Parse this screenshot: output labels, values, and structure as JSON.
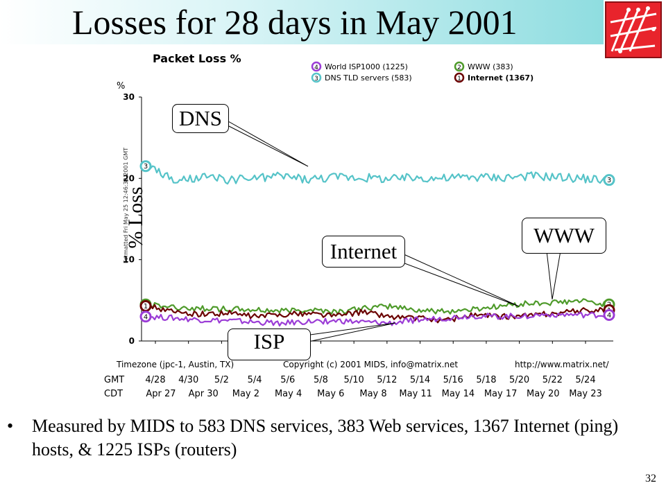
{
  "slide": {
    "title": "Losses for 28 days in May 2001",
    "bullet": "Measured by MIDS to 583 DNS services, 383 Web services, 1367 Internet (ping) hosts, & 1225 ISPs (routers)",
    "page_number": "32",
    "y_axis_overlay": "% Loss",
    "callouts": {
      "dns": "DNS",
      "www": "WWW",
      "internet": "Internet",
      "isp": "ISP"
    }
  },
  "colors": {
    "dns": "#55c3c8",
    "www": "#4e9a2a",
    "internet": "#6a0000",
    "isp": "#9b3cd6",
    "logo": "#e8242c"
  },
  "chart_data": {
    "type": "line",
    "title": "Packet Loss %",
    "ylabel": "%",
    "ylim": [
      0,
      30
    ],
    "y_ticks": [
      "30",
      "20",
      "10",
      "0"
    ],
    "side_label": "Formatted Fri May 25 12:46:32 2001 GMT",
    "footer_left": "Timezone (jpc-1, Austin, TX)",
    "footer_center": "Copyright (c) 2001 MIDS, info@matrix.net",
    "footer_right": "http://www.matrix.net/",
    "gmt_label": "GMT",
    "cdt_label": "CDT",
    "gmt_ticks": [
      "4/28",
      "4/30",
      "5/2",
      "5/4",
      "5/6",
      "5/8",
      "5/10",
      "5/12",
      "5/14",
      "5/16",
      "5/18",
      "5/20",
      "5/22",
      "5/24"
    ],
    "cdt_ticks": [
      "Apr 27",
      "Apr 30",
      "May 2",
      "May 4",
      "May 6",
      "May 8",
      "May 11",
      "May 14",
      "May 17",
      "May 20",
      "May 23"
    ],
    "legend": [
      {
        "num": "4",
        "name": "World ISP1000 (1225)",
        "key": "isp"
      },
      {
        "num": "3",
        "name": "DNS TLD servers (583)",
        "key": "dns"
      },
      {
        "num": "2",
        "name": "WWW (383)",
        "key": "www"
      },
      {
        "num": "1",
        "name": "Internet (1367)",
        "key": "internet"
      }
    ],
    "series": [
      {
        "key": "dns",
        "num": "3",
        "values": [
          21.5,
          19.6,
          20.1,
          19.8,
          20.0,
          20.3,
          19.9,
          20.2,
          20.1,
          19.9,
          20.1,
          20.0,
          20.2,
          20.1,
          20.3,
          20.2,
          20.0,
          19.8
        ]
      },
      {
        "key": "www",
        "num": "2",
        "values": [
          4.5,
          4.1,
          4.0,
          3.9,
          3.8,
          3.7,
          3.9,
          3.6,
          4.0,
          4.3,
          3.8,
          3.6,
          3.9,
          4.3,
          4.6,
          4.7,
          4.9,
          4.5
        ]
      },
      {
        "key": "internet",
        "num": "1",
        "values": [
          4.3,
          3.5,
          3.3,
          3.4,
          3.0,
          3.3,
          3.4,
          3.1,
          3.6,
          3.0,
          2.8,
          2.5,
          3.2,
          3.0,
          3.1,
          3.4,
          3.7,
          3.8
        ]
      },
      {
        "key": "isp",
        "num": "4",
        "values": [
          3.0,
          2.8,
          2.6,
          2.5,
          2.3,
          2.2,
          2.4,
          2.5,
          2.3,
          2.2,
          2.6,
          2.8,
          3.1,
          3.0,
          3.1,
          3.3,
          3.2,
          3.2
        ]
      }
    ]
  }
}
